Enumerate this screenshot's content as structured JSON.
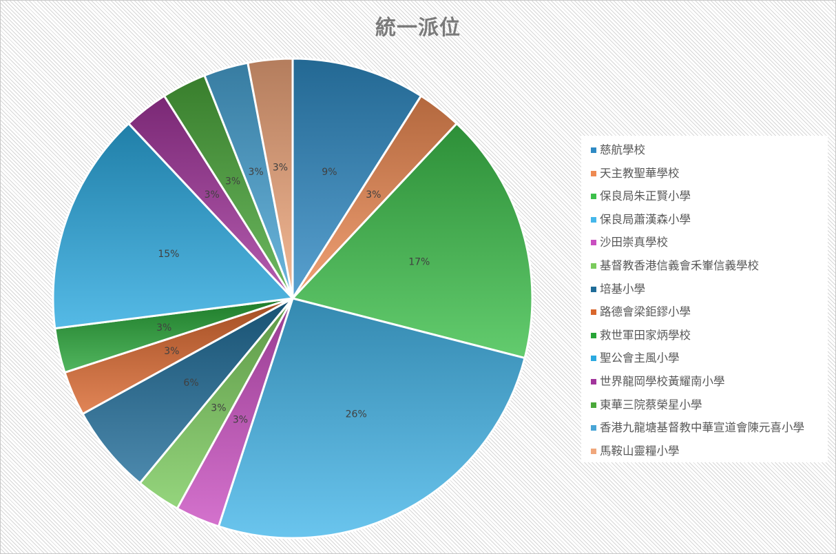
{
  "chart_data": {
    "type": "pie",
    "title": "統一派位",
    "legend_position": "right",
    "slices": [
      {
        "label": "慈航學校",
        "value": 9,
        "pct_label": "9%",
        "color": "#2f8ac4"
      },
      {
        "label": "天主教聖華學校",
        "value": 3,
        "pct_label": "3%",
        "color": "#ee8a52"
      },
      {
        "label": "保良局朱正賢小學",
        "value": 17,
        "pct_label": "17%",
        "color": "#3cbf4a"
      },
      {
        "label": "保良局蕭漢森小學",
        "value": 26,
        "pct_label": "26%",
        "color": "#45b7ea"
      },
      {
        "label": "沙田崇真學校",
        "value": 3,
        "pct_label": "3%",
        "color": "#c94fc0"
      },
      {
        "label": "基督教香港信義會禾輋信義學校",
        "value": 3,
        "pct_label": "3%",
        "color": "#7acb5c"
      },
      {
        "label": "培基小學",
        "value": 6,
        "pct_label": "6%",
        "color": "#1f6c98"
      },
      {
        "label": "路德會梁鉅鏐小學",
        "value": 3,
        "pct_label": "3%",
        "color": "#d9672d"
      },
      {
        "label": "救世軍田家炳學校",
        "value": 3,
        "pct_label": "3%",
        "color": "#27a437"
      },
      {
        "label": "聖公會主風小學",
        "value": 15,
        "pct_label": "15%",
        "color": "#2ba9e0"
      },
      {
        "label": "世界龍岡學校黃耀南小學",
        "value": 3,
        "pct_label": "3%",
        "color": "#a2359c"
      },
      {
        "label": "東華三院蔡榮星小學",
        "value": 3,
        "pct_label": "3%",
        "color": "#4aa83a"
      },
      {
        "label": "香港九龍塘基督教中華宣道會陳元喜小學",
        "value": 3,
        "pct_label": "3%",
        "color": "#49a5d6"
      },
      {
        "label": "馬鞍山靈糧小學",
        "value": 3,
        "pct_label": "3%",
        "color": "#f0a77c"
      }
    ]
  }
}
